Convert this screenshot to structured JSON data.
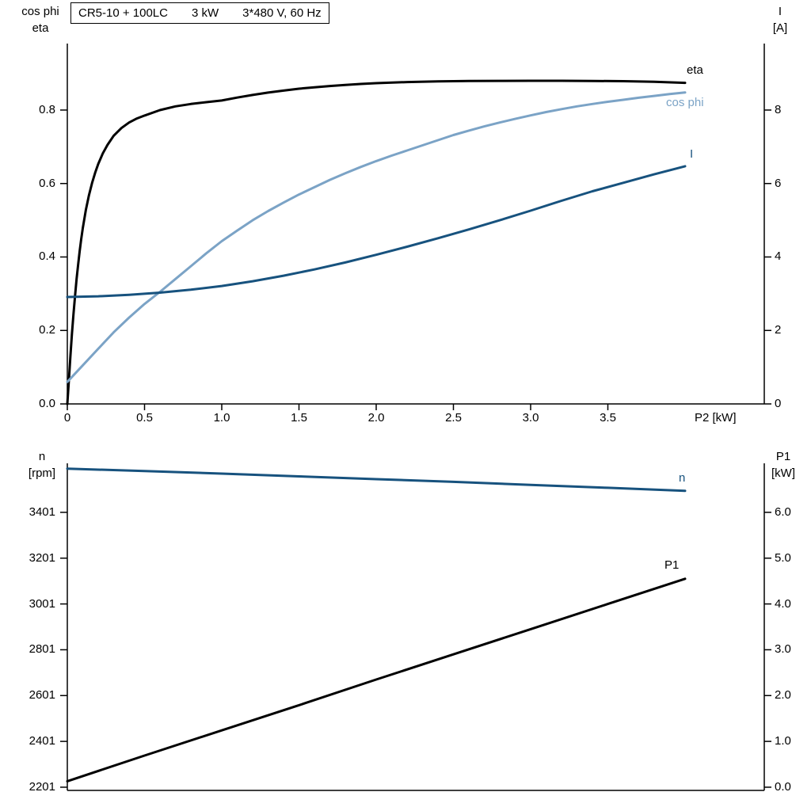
{
  "title_parts": [
    "CR5-10 + 100LC",
    "3 kW",
    "3*480 V, 60 Hz"
  ],
  "colors": {
    "black": "#000000",
    "dark_blue": "#17527e",
    "light_blue": "#7ba3c6",
    "axis": "#000000",
    "background": "#ffffff"
  },
  "top_headers": {
    "left": [
      "cos phi",
      "eta"
    ],
    "right": [
      "I",
      "[A]"
    ]
  },
  "bottom_headers": {
    "left": [
      "n",
      "[rpm]"
    ],
    "right": [
      "P1",
      "[kW]"
    ]
  },
  "chart_data": [
    {
      "type": "line",
      "title": "CR5-10 + 100LC  3 kW  3*480 V, 60 Hz",
      "xlabel": "P2 [kW]",
      "x_range": [
        0,
        4
      ],
      "x_ticks": {
        "labels": [
          "0",
          "0.5",
          "1.0",
          "1.5",
          "2.0",
          "2.5",
          "3.0",
          "3.5"
        ],
        "values": [
          0,
          0.5,
          1,
          1.5,
          2,
          2.5,
          3,
          3.5
        ]
      },
      "y_left": {
        "label": "cos phi / eta",
        "range": [
          0,
          0.981
        ],
        "ticks": [
          0,
          0.2,
          0.4,
          0.6,
          0.8
        ],
        "tick_labels": [
          "0.0",
          "0.2",
          "0.4",
          "0.6",
          "0.8"
        ]
      },
      "y_right": {
        "label": "I [A]",
        "range": [
          0,
          9.81
        ],
        "ticks": [
          0,
          2,
          4,
          6,
          8
        ],
        "tick_labels": [
          "0",
          "2",
          "4",
          "6",
          "8"
        ]
      },
      "legend_position": "right-inline",
      "grid": false,
      "series": [
        {
          "name": "eta",
          "axis": "left",
          "color": "#000000",
          "points": [
            [
              0,
              0
            ],
            [
              0.01,
              0.065
            ],
            [
              0.02,
              0.13
            ],
            [
              0.03,
              0.19
            ],
            [
              0.04,
              0.245
            ],
            [
              0.05,
              0.295
            ],
            [
              0.06,
              0.34
            ],
            [
              0.07,
              0.38
            ],
            [
              0.08,
              0.416
            ],
            [
              0.09,
              0.448
            ],
            [
              0.1,
              0.478
            ],
            [
              0.12,
              0.528
            ],
            [
              0.14,
              0.568
            ],
            [
              0.16,
              0.601
            ],
            [
              0.18,
              0.629
            ],
            [
              0.2,
              0.653
            ],
            [
              0.23,
              0.682
            ],
            [
              0.26,
              0.705
            ],
            [
              0.3,
              0.73
            ],
            [
              0.35,
              0.751
            ],
            [
              0.4,
              0.766
            ],
            [
              0.45,
              0.777
            ],
            [
              0.5,
              0.785
            ],
            [
              0.6,
              0.8
            ],
            [
              0.7,
              0.81
            ],
            [
              0.8,
              0.8165
            ],
            [
              0.9,
              0.8215
            ],
            [
              1.0,
              0.826
            ],
            [
              1.1,
              0.834
            ],
            [
              1.2,
              0.841
            ],
            [
              1.3,
              0.8475
            ],
            [
              1.4,
              0.853
            ],
            [
              1.5,
              0.858
            ],
            [
              1.6,
              0.862
            ],
            [
              1.7,
              0.8655
            ],
            [
              1.8,
              0.8685
            ],
            [
              1.9,
              0.871
            ],
            [
              2.0,
              0.8732
            ],
            [
              2.2,
              0.8762
            ],
            [
              2.4,
              0.878
            ],
            [
              2.6,
              0.879
            ],
            [
              2.8,
              0.8795
            ],
            [
              3.0,
              0.8797
            ],
            [
              3.2,
              0.8797
            ],
            [
              3.4,
              0.8793
            ],
            [
              3.6,
              0.8785
            ],
            [
              3.8,
              0.877
            ],
            [
              4.0,
              0.874
            ]
          ]
        },
        {
          "name": "cos phi",
          "axis": "left",
          "color": "#7ba3c6",
          "points": [
            [
              0,
              0.06
            ],
            [
              0.1,
              0.105
            ],
            [
              0.2,
              0.15
            ],
            [
              0.3,
              0.195
            ],
            [
              0.4,
              0.235
            ],
            [
              0.5,
              0.272
            ],
            [
              0.6,
              0.305
            ],
            [
              0.7,
              0.34
            ],
            [
              0.8,
              0.375
            ],
            [
              0.9,
              0.41
            ],
            [
              1.0,
              0.443
            ],
            [
              1.1,
              0.472
            ],
            [
              1.2,
              0.5
            ],
            [
              1.3,
              0.525
            ],
            [
              1.4,
              0.548
            ],
            [
              1.5,
              0.57
            ],
            [
              1.6,
              0.59
            ],
            [
              1.7,
              0.61
            ],
            [
              1.8,
              0.628
            ],
            [
              1.9,
              0.645
            ],
            [
              2.0,
              0.661
            ],
            [
              2.1,
              0.676
            ],
            [
              2.2,
              0.69
            ],
            [
              2.3,
              0.704
            ],
            [
              2.4,
              0.718
            ],
            [
              2.5,
              0.732
            ],
            [
              2.6,
              0.744
            ],
            [
              2.7,
              0.7555
            ],
            [
              2.8,
              0.766
            ],
            [
              2.9,
              0.776
            ],
            [
              3.0,
              0.7855
            ],
            [
              3.1,
              0.7945
            ],
            [
              3.2,
              0.8025
            ],
            [
              3.3,
              0.81
            ],
            [
              3.4,
              0.8165
            ],
            [
              3.5,
              0.8225
            ],
            [
              3.6,
              0.828
            ],
            [
              3.7,
              0.8335
            ],
            [
              3.8,
              0.8385
            ],
            [
              3.9,
              0.8435
            ],
            [
              4.0,
              0.848
            ]
          ]
        },
        {
          "name": "I",
          "axis": "right",
          "color": "#17527e",
          "points": [
            [
              0,
              2.91
            ],
            [
              0.2,
              2.93
            ],
            [
              0.4,
              2.97
            ],
            [
              0.6,
              3.03
            ],
            [
              0.8,
              3.11
            ],
            [
              1.0,
              3.21
            ],
            [
              1.2,
              3.34
            ],
            [
              1.4,
              3.49
            ],
            [
              1.6,
              3.66
            ],
            [
              1.8,
              3.85
            ],
            [
              2.0,
              4.06
            ],
            [
              2.2,
              4.28
            ],
            [
              2.4,
              4.51
            ],
            [
              2.6,
              4.75
            ],
            [
              2.8,
              5.0
            ],
            [
              3.0,
              5.26
            ],
            [
              3.2,
              5.53
            ],
            [
              3.4,
              5.79
            ],
            [
              3.6,
              6.02
            ],
            [
              3.8,
              6.25
            ],
            [
              4.0,
              6.47
            ]
          ]
        }
      ]
    },
    {
      "type": "line",
      "title": "",
      "xlabel": "",
      "x_range": [
        0,
        4
      ],
      "y_left": {
        "label": "n [rpm]",
        "range": [
          2187,
          3615
        ],
        "ticks": [
          2201,
          2401,
          2601,
          2801,
          3001,
          3201,
          3401
        ],
        "tick_labels": [
          "2201",
          "2401",
          "2601",
          "2801",
          "3001",
          "3201",
          "3401"
        ]
      },
      "y_right": {
        "label": "P1 [kW]",
        "range": [
          -0.07,
          7.07
        ],
        "ticks": [
          0,
          1,
          2,
          3,
          4,
          5,
          6
        ],
        "tick_labels": [
          "0.0",
          "1.0",
          "2.0",
          "3.0",
          "4.0",
          "5.0",
          "6.0"
        ]
      },
      "grid": false,
      "series": [
        {
          "name": "n",
          "axis": "left",
          "color": "#17527e",
          "points": [
            [
              0,
              3592
            ],
            [
              0.5,
              3581
            ],
            [
              1.0,
              3570
            ],
            [
              1.5,
              3558
            ],
            [
              2.0,
              3546
            ],
            [
              2.5,
              3534
            ],
            [
              3.0,
              3521
            ],
            [
              3.5,
              3508
            ],
            [
              4.0,
              3495
            ]
          ]
        },
        {
          "name": "P1",
          "axis": "right",
          "color": "#000000",
          "points": [
            [
              0,
              0.13
            ],
            [
              0.5,
              0.69
            ],
            [
              1.0,
              1.24
            ],
            [
              1.5,
              1.79
            ],
            [
              2.0,
              2.35
            ],
            [
              2.5,
              2.9
            ],
            [
              3.0,
              3.45
            ],
            [
              3.5,
              4.0
            ],
            [
              4.0,
              4.55
            ]
          ]
        }
      ]
    }
  ]
}
